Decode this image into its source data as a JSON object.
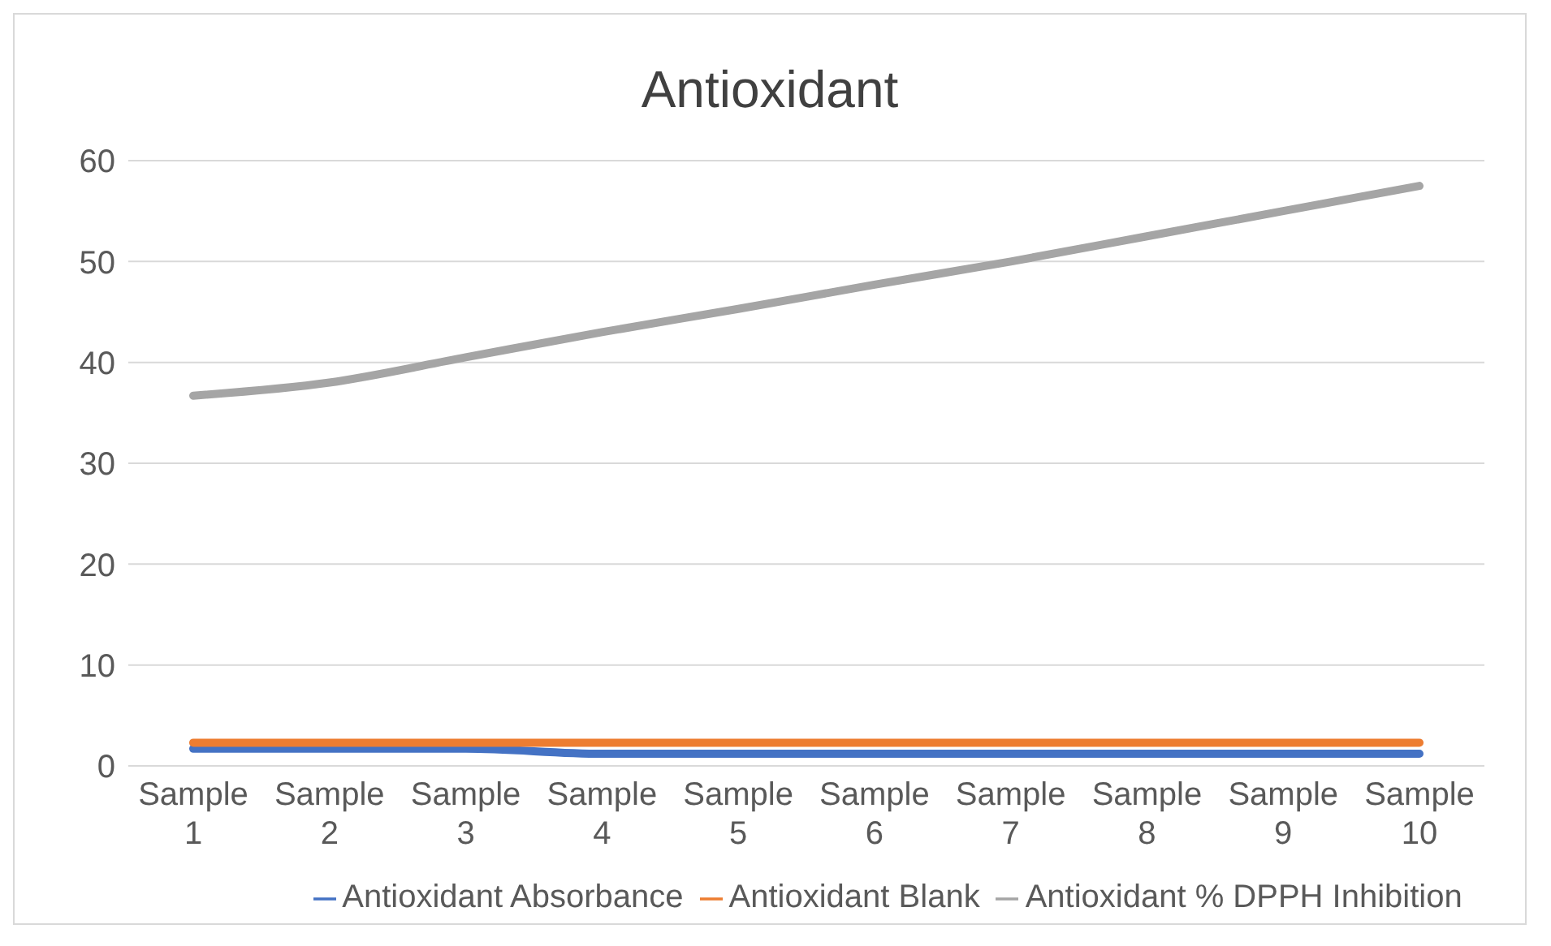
{
  "chart_data": {
    "type": "line",
    "title": "Antioxidant",
    "categories": [
      "Sample 1",
      "Sample 2",
      "Sample 3",
      "Sample 4",
      "Sample 5",
      "Sample 6",
      "Sample 7",
      "Sample 8",
      "Sample 9",
      "Sample 10"
    ],
    "series": [
      {
        "name": "Antioxidant Absorbance",
        "color": "#4472c4",
        "values": [
          1.7,
          1.7,
          1.7,
          1.2,
          1.2,
          1.2,
          1.2,
          1.2,
          1.2,
          1.2
        ]
      },
      {
        "name": "Antioxidant Blank",
        "color": "#ed7d31",
        "values": [
          2.3,
          2.3,
          2.3,
          2.3,
          2.3,
          2.3,
          2.3,
          2.3,
          2.3,
          2.3
        ]
      },
      {
        "name": "Antioxidant % DPPH Inhibition",
        "color": "#a5a5a5",
        "values": [
          36.7,
          38,
          40.5,
          43,
          45.3,
          47.7,
          50,
          52.5,
          55,
          57.5
        ]
      }
    ],
    "ylim": [
      0,
      60
    ],
    "yticks": [
      0,
      10,
      20,
      30,
      40,
      50,
      60
    ],
    "grid": "y",
    "legend": "bottom",
    "marker": "none",
    "line_style": "solid"
  }
}
